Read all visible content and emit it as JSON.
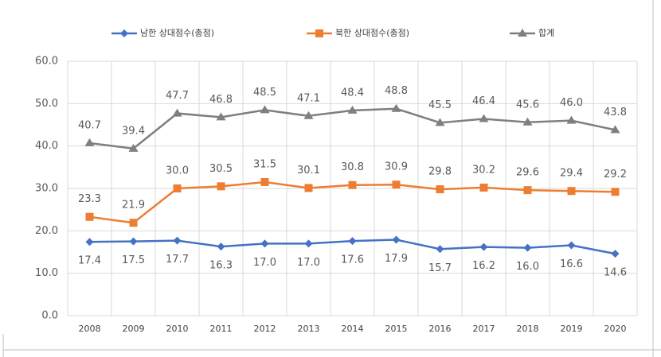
{
  "chart_data": {
    "type": "line",
    "categories": [
      "2008",
      "2009",
      "2010",
      "2011",
      "2012",
      "2013",
      "2014",
      "2015",
      "2016",
      "2017",
      "2018",
      "2019",
      "2020"
    ],
    "series": [
      {
        "name": "남한 상대점수(총점)",
        "color": "#4472c4",
        "marker": "diamond",
        "label_position": "below",
        "values": [
          17.4,
          17.5,
          17.7,
          16.3,
          17.0,
          17.0,
          17.6,
          17.9,
          15.7,
          16.2,
          16.0,
          16.6,
          14.6
        ],
        "value_labels": [
          "17.4",
          "17.5",
          "17.7",
          "16.3",
          "17.0",
          "17.0",
          "17.6",
          "17.9",
          "15.7",
          "16.2",
          "16.0",
          "16.6",
          "14.6"
        ]
      },
      {
        "name": "북한 상대점수(총점)",
        "color": "#ed7d31",
        "marker": "square",
        "label_position": "above",
        "values": [
          23.3,
          21.9,
          30.0,
          30.5,
          31.5,
          30.1,
          30.8,
          30.9,
          29.8,
          30.2,
          29.6,
          29.4,
          29.2
        ],
        "value_labels": [
          "23.3",
          "21.9",
          "30.0",
          "30.5",
          "31.5",
          "30.1",
          "30.8",
          "30.9",
          "29.8",
          "30.2",
          "29.6",
          "29.4",
          "29.2"
        ]
      },
      {
        "name": "합계",
        "color": "#7f7f7f",
        "marker": "triangle",
        "label_position": "above",
        "values": [
          40.7,
          39.4,
          47.7,
          46.8,
          48.5,
          47.1,
          48.4,
          48.8,
          45.5,
          46.4,
          45.6,
          46.0,
          43.8
        ],
        "value_labels": [
          "40.7",
          "39.4",
          "47.7",
          "46.8",
          "48.5",
          "47.1",
          "48.4",
          "48.8",
          "45.5",
          "46.4",
          "45.6",
          "46.0",
          "43.8"
        ]
      }
    ],
    "ylim": [
      0,
      60
    ],
    "yticks": [
      {
        "value": 0,
        "label": "0.0"
      },
      {
        "value": 10,
        "label": "10.0"
      },
      {
        "value": 20,
        "label": "20.0"
      },
      {
        "value": 30,
        "label": "30.0"
      },
      {
        "value": 40,
        "label": "40.0"
      },
      {
        "value": 50,
        "label": "50.0"
      },
      {
        "value": 60,
        "label": "60.0"
      }
    ],
    "grid": true,
    "legend": "top"
  }
}
